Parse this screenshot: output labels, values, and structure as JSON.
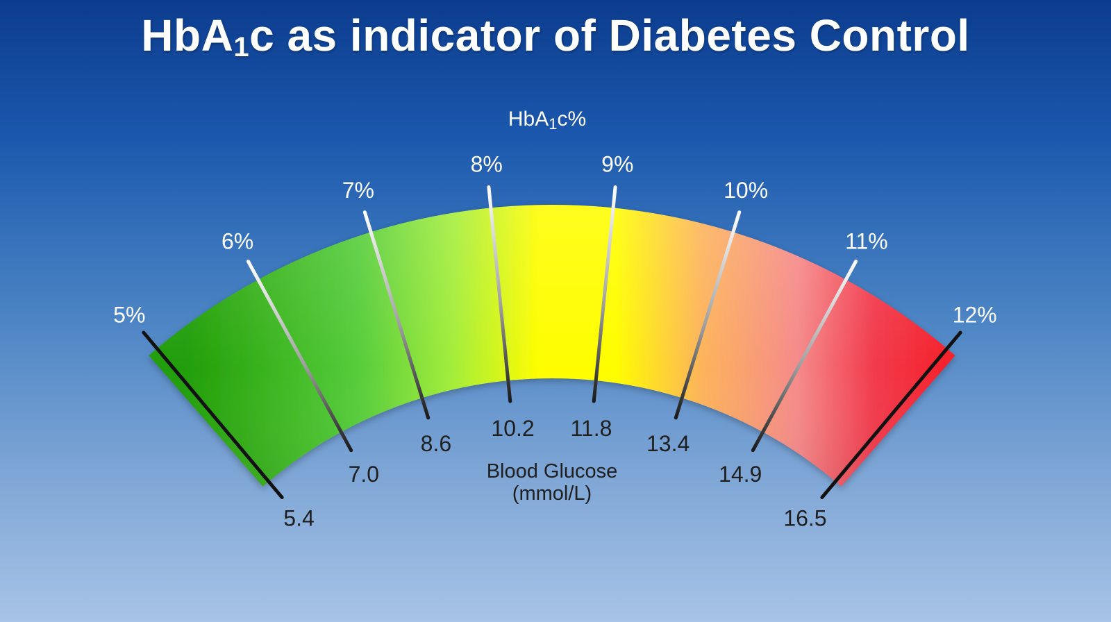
{
  "title": {
    "prefix": "HbA",
    "subscript": "1",
    "suffix": "c as indicator of Diabetes Control"
  },
  "gauge": {
    "outer_caption": {
      "prefix": "HbA",
      "subscript": "1",
      "suffix": "c%"
    },
    "inner_caption": [
      "Blood Glucose",
      "(mmol/L)"
    ],
    "colors": {
      "green": "#229e07",
      "yellow": "#fffd00",
      "orange": "#fdb35b",
      "pink": "#f58a8a",
      "red": "#f80707"
    },
    "ticks": [
      {
        "hba1c": "5%",
        "glucose": "5.4"
      },
      {
        "hba1c": "6%",
        "glucose": "7.0"
      },
      {
        "hba1c": "7%",
        "glucose": "8.6"
      },
      {
        "hba1c": "8%",
        "glucose": "10.2"
      },
      {
        "hba1c": "9%",
        "glucose": "11.8"
      },
      {
        "hba1c": "10%",
        "glucose": "13.4"
      },
      {
        "hba1c": "11%",
        "glucose": "14.9"
      },
      {
        "hba1c": "12%",
        "glucose": "16.5"
      }
    ]
  }
}
